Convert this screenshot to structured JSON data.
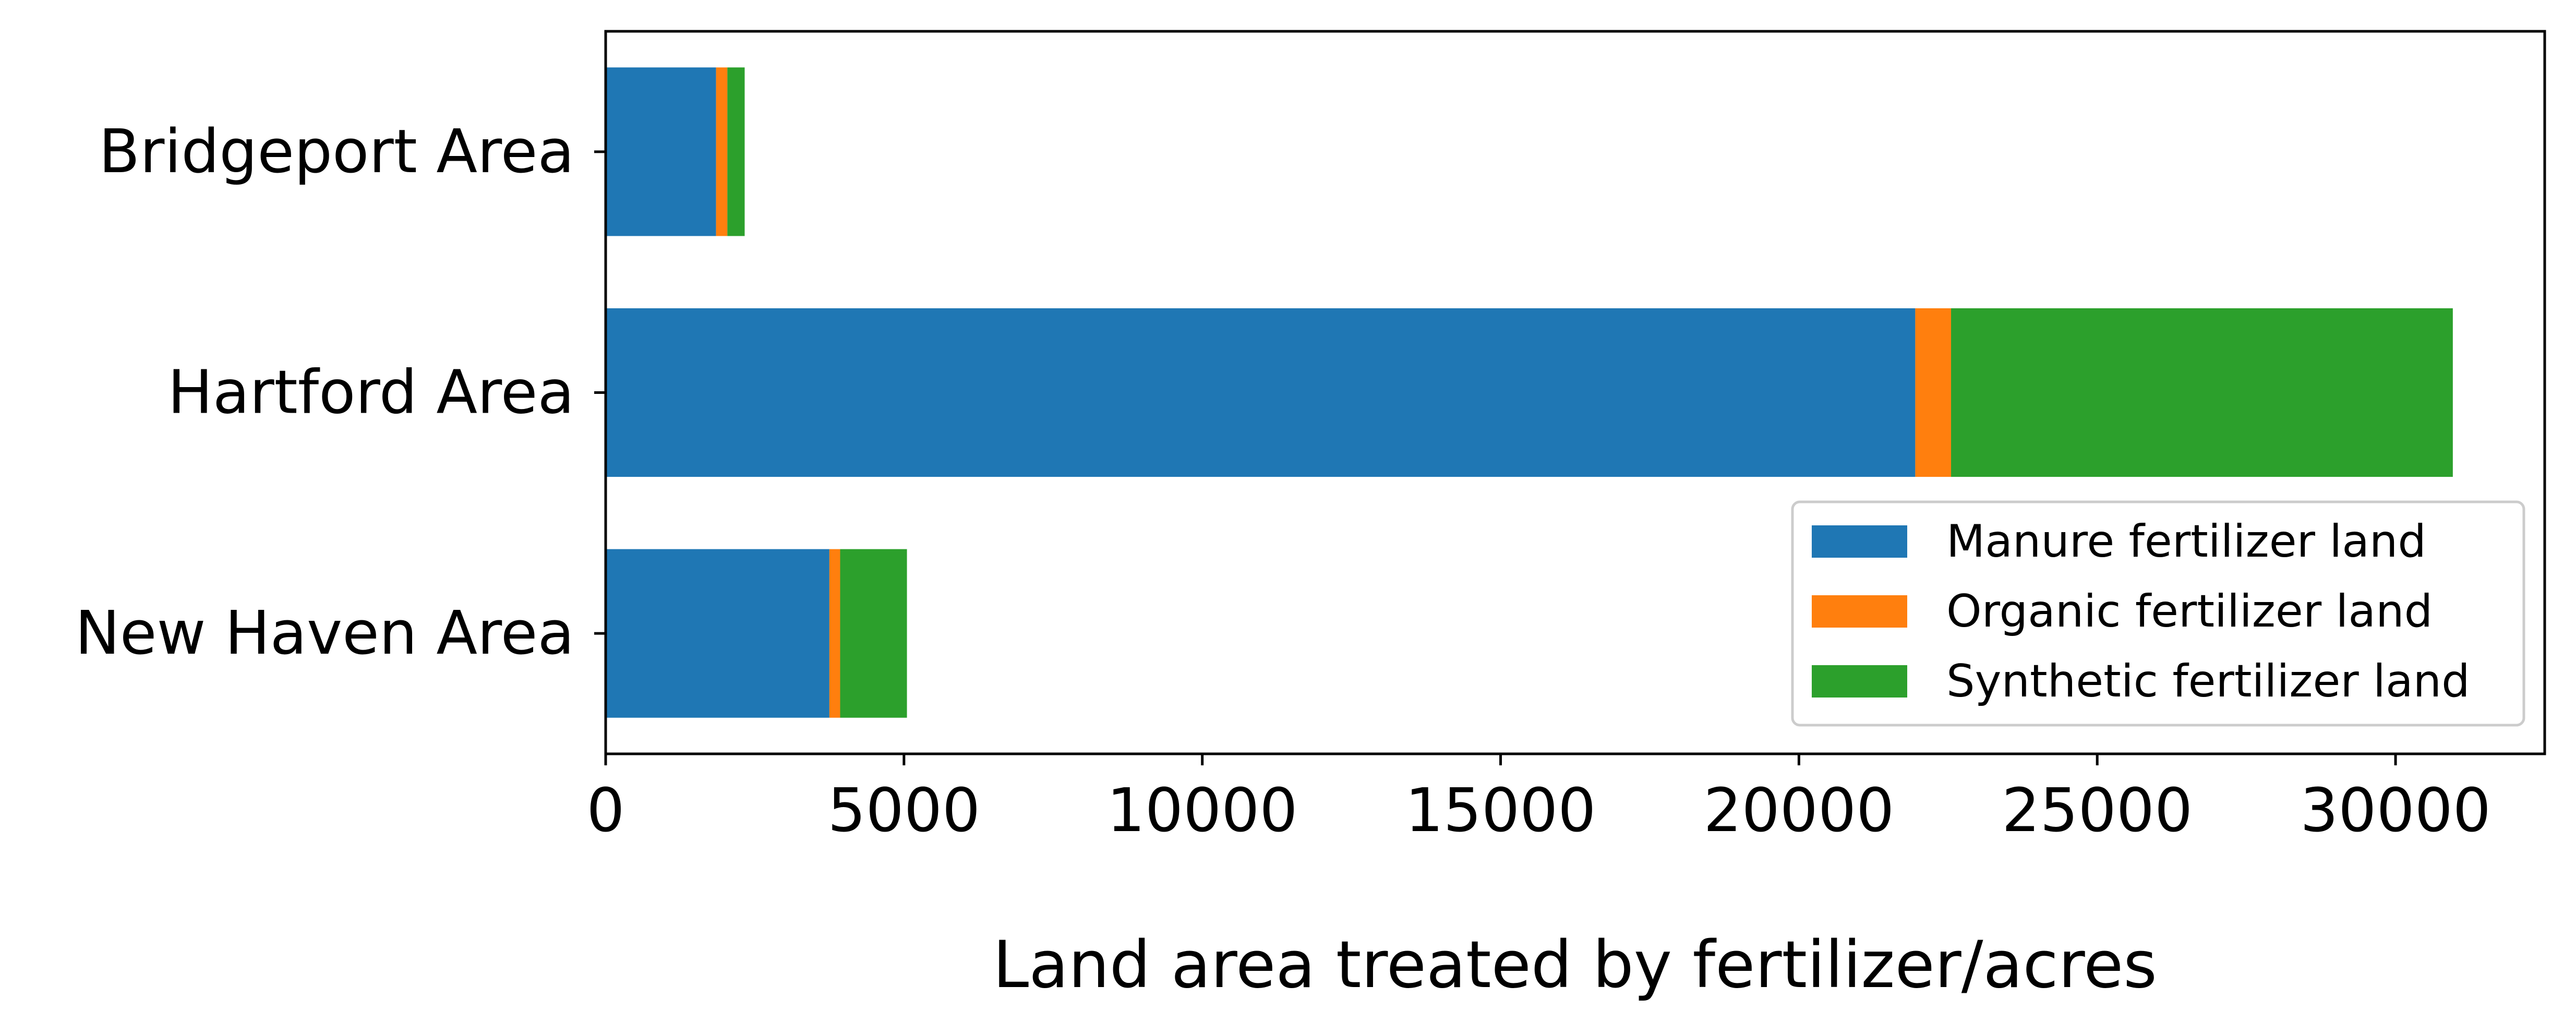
{
  "chart_data": {
    "type": "bar",
    "orientation": "horizontal",
    "stacked": true,
    "title": "",
    "xlabel": "Land area treated by fertilizer/acres",
    "ylabel": "",
    "xlim": [
      0,
      32500
    ],
    "xticks": [
      0,
      5000,
      10000,
      15000,
      20000,
      25000,
      30000
    ],
    "xtick_labels": [
      "0",
      "5000",
      "10000",
      "15000",
      "20000",
      "25000",
      "30000"
    ],
    "categories": [
      "Bridgeport Area",
      "Hartford Area",
      "New Haven Area"
    ],
    "series": [
      {
        "name": "Manure fertilizer land",
        "color": "#1f77b4",
        "values": [
          1850,
          21950,
          3750
        ]
      },
      {
        "name": "Organic fertilizer land",
        "color": "#ff7f0e",
        "values": [
          190,
          600,
          180
        ]
      },
      {
        "name": "Synthetic fertilizer land",
        "color": "#2ca02c",
        "values": [
          290,
          8410,
          1120
        ]
      }
    ],
    "legend_position": "lower-right",
    "grid": false
  }
}
